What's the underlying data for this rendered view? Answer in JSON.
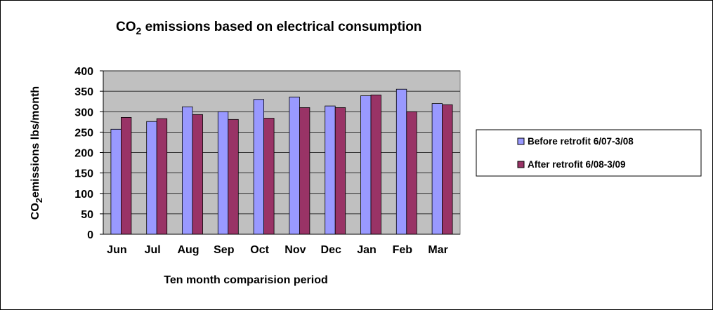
{
  "chart_data": {
    "type": "bar",
    "title": {
      "pre": "CO",
      "sub": "2",
      "post": " emissions  based on electrical consumption"
    },
    "ylabel": {
      "pre": "CO",
      "sub": "2",
      "post": "emissions lbs/month"
    },
    "xlabel": "Ten month comparision period",
    "categories": [
      "Jun",
      "Jul",
      "Aug",
      "Sep",
      "Oct",
      "Nov",
      "Dec",
      "Jan",
      "Feb",
      "Mar"
    ],
    "series": [
      {
        "name": "Before retrofit 6/07-3/08",
        "color": "#9999ff",
        "values": [
          257,
          276,
          312,
          300,
          330,
          336,
          314,
          339,
          355,
          320
        ]
      },
      {
        "name": "After retrofit 6/08-3/09",
        "color": "#993366",
        "values": [
          286,
          283,
          293,
          281,
          284,
          310,
          310,
          341,
          300,
          317
        ]
      }
    ],
    "ylim": [
      0,
      400
    ],
    "yticks": [
      0,
      50,
      100,
      150,
      200,
      250,
      300,
      350,
      400
    ],
    "plot_background": "#c0c0c0",
    "grid": true,
    "legend_position": "right"
  }
}
